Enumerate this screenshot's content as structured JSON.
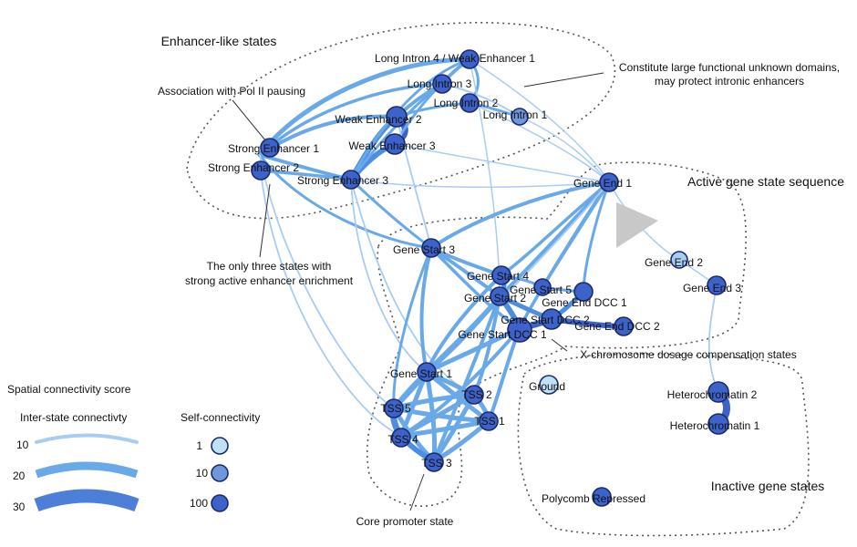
{
  "regions": {
    "enhancer": "Enhancer-like states",
    "active": "Active gene state sequence",
    "inactive": "Inactive gene states"
  },
  "annotations": {
    "pol2": "Association with Pol II pausing",
    "unknown_line1": "Constitute large functional unknown domains,",
    "unknown_line2": "may protect intronic enhancers",
    "three_line1": "The only three states with",
    "three_line2": "strong active enhancer enrichment",
    "xchrom": "X-chromosome dosage compensation states",
    "core": "Core promoter state"
  },
  "nodes": {
    "long_intron_4": "Long Intron 4 / Weak Enhancer 1",
    "long_intron_3": "Long Intron 3",
    "long_intron_2": "Long Intron 2",
    "long_intron_1": "Long Intron 1",
    "weak_enhancer_2": "Weak Enhancer 2",
    "weak_enhancer_3": "Weak Enhancer 3",
    "strong_enhancer_1": "Strong Enhancer 1",
    "strong_enhancer_2": "Strong Enhancer 2",
    "strong_enhancer_3": "Strong Enhancer 3",
    "gene_end_1": "Gene End 1",
    "gene_end_2": "Gene End 2",
    "gene_end_3": "Gene End 3",
    "gene_start_3": "Gene Start 3",
    "gene_start_4": "Gene Start 4",
    "gene_start_5": "Gene Start 5",
    "gene_start_2": "Gene Start 2",
    "gene_end_dcc_1": "Gene End DCC 1",
    "gene_start_dcc_2": "Gene Start DCC 2",
    "gene_end_dcc_2": "Gene End DCC 2",
    "gene_start_dcc_1": "Gene Start DCC 1",
    "gene_start_1": "Gene Start 1",
    "ground": "Ground",
    "heterochromatin_2": "Heterochromatin 2",
    "heterochromatin_1": "Heterochromatin 1",
    "tss_5": "TSS 5",
    "tss_2": "TSS 2",
    "tss_1": "TSS 1",
    "tss_4": "TSS 4",
    "tss_3": "TSS 3",
    "polycomb": "Polycomb Repressed"
  },
  "legend": {
    "title": "Spatial connectivity score",
    "inter_title": "Inter-state connectivty",
    "self_title": "Self-connectivity",
    "inter_values": [
      "10",
      "20",
      "30"
    ],
    "self_values": [
      "1",
      "10",
      "100"
    ]
  },
  "colors": {
    "edge": "#6aa9e8",
    "edge_light": "#a9cdf2",
    "node_dark": "#3d62c9",
    "node_mid": "#6f97dc",
    "node_light": "#bfe0f7",
    "stroke": "#1b2a6b"
  }
}
